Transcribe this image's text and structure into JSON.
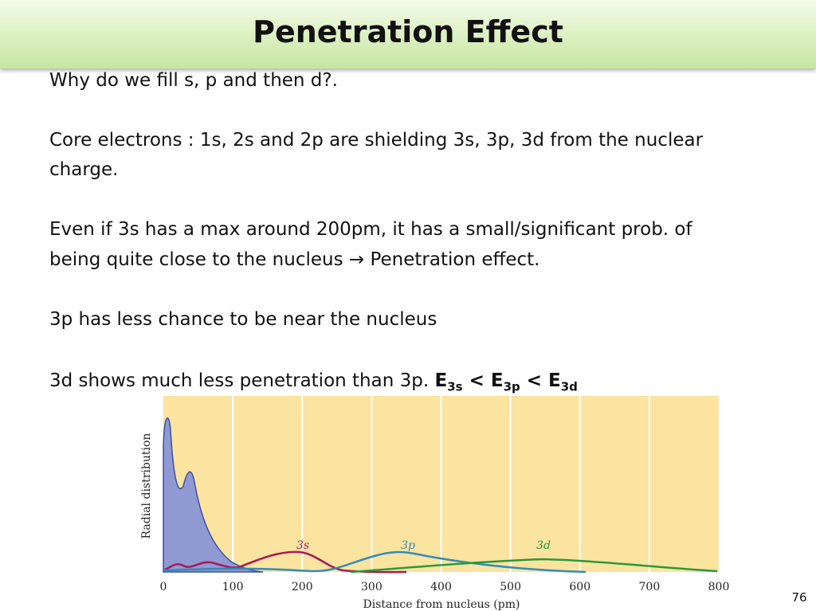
{
  "header": {
    "title": "Penetration Effect"
  },
  "body": {
    "paragraphs": [
      "Why do we fill s, p and then d?.",
      "Core electrons : 1s, 2s and 2p are shielding 3s, 3p, 3d from the nuclear",
      "charge.",
      "Even if 3s has a max around 200pm, it has a small/significant prob. of",
      "being quite close to the nucleus → Penetration effect.",
      "3p has less chance to be near the nucleus",
      "3d shows much less penetration than 3p. "
    ],
    "formula": [
      "E",
      "3s",
      " < E",
      "3p",
      " < E",
      "3d"
    ]
  },
  "figure": {
    "ylabel": "Radial distribution",
    "xlabel": "Distance from nucleus (pm)",
    "xticks": [
      0,
      100,
      200,
      300,
      400,
      500,
      600,
      700,
      800
    ],
    "curve_labels": [
      "3s",
      "3p",
      "3d"
    ]
  },
  "footer": {
    "page": "76"
  }
}
